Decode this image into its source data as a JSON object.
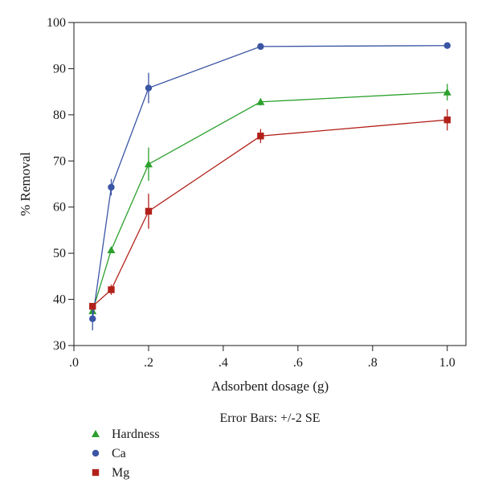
{
  "chart_data": {
    "type": "line",
    "xlabel": "Adsorbent dosage (g)",
    "ylabel": "% Removal",
    "xlim": [
      0,
      1.05
    ],
    "ylim": [
      30,
      100
    ],
    "x_ticks": [
      {
        "value": 0.0,
        "label": ".0"
      },
      {
        "value": 0.2,
        "label": ".2"
      },
      {
        "value": 0.4,
        "label": ".4"
      },
      {
        "value": 0.6,
        "label": ".6"
      },
      {
        "value": 0.8,
        "label": ".8"
      },
      {
        "value": 1.0,
        "label": "1.0"
      }
    ],
    "y_ticks": [
      {
        "value": 30,
        "label": "30"
      },
      {
        "value": 40,
        "label": "40"
      },
      {
        "value": 50,
        "label": "50"
      },
      {
        "value": 60,
        "label": "60"
      },
      {
        "value": 70,
        "label": "70"
      },
      {
        "value": 80,
        "label": "80"
      },
      {
        "value": 90,
        "label": "90"
      },
      {
        "value": 100,
        "label": "100"
      }
    ],
    "grid": false,
    "legend_position": "bottom-left",
    "note": "Error Bars: +/-2 SE",
    "series": [
      {
        "name": "Hardness",
        "marker": "triangle",
        "color": "#2ca02c",
        "points": [
          {
            "x": 0.05,
            "y": 37.5,
            "err": 0.8
          },
          {
            "x": 0.1,
            "y": 50.7,
            "err": 0.6
          },
          {
            "x": 0.2,
            "y": 69.3,
            "err": 3.6
          },
          {
            "x": 0.5,
            "y": 82.8,
            "err": 0.8
          },
          {
            "x": 1.0,
            "y": 84.9,
            "err": 1.8
          }
        ]
      },
      {
        "name": "Ca",
        "marker": "circle",
        "color": "#3a55a4",
        "points": [
          {
            "x": 0.05,
            "y": 35.8,
            "err": 2.5
          },
          {
            "x": 0.1,
            "y": 64.3,
            "err": 1.8
          },
          {
            "x": 0.2,
            "y": 85.8,
            "err": 3.3
          },
          {
            "x": 0.5,
            "y": 94.8,
            "err": 0.4
          },
          {
            "x": 1.0,
            "y": 95.0,
            "err": 0.4
          }
        ]
      },
      {
        "name": "Mg",
        "marker": "square",
        "color": "#b2201a",
        "points": [
          {
            "x": 0.05,
            "y": 38.5,
            "err": 0.6
          },
          {
            "x": 0.1,
            "y": 42.1,
            "err": 1.1
          },
          {
            "x": 0.2,
            "y": 59.1,
            "err": 3.8
          },
          {
            "x": 0.5,
            "y": 75.4,
            "err": 1.5
          },
          {
            "x": 1.0,
            "y": 78.9,
            "err": 2.3
          }
        ]
      }
    ]
  }
}
